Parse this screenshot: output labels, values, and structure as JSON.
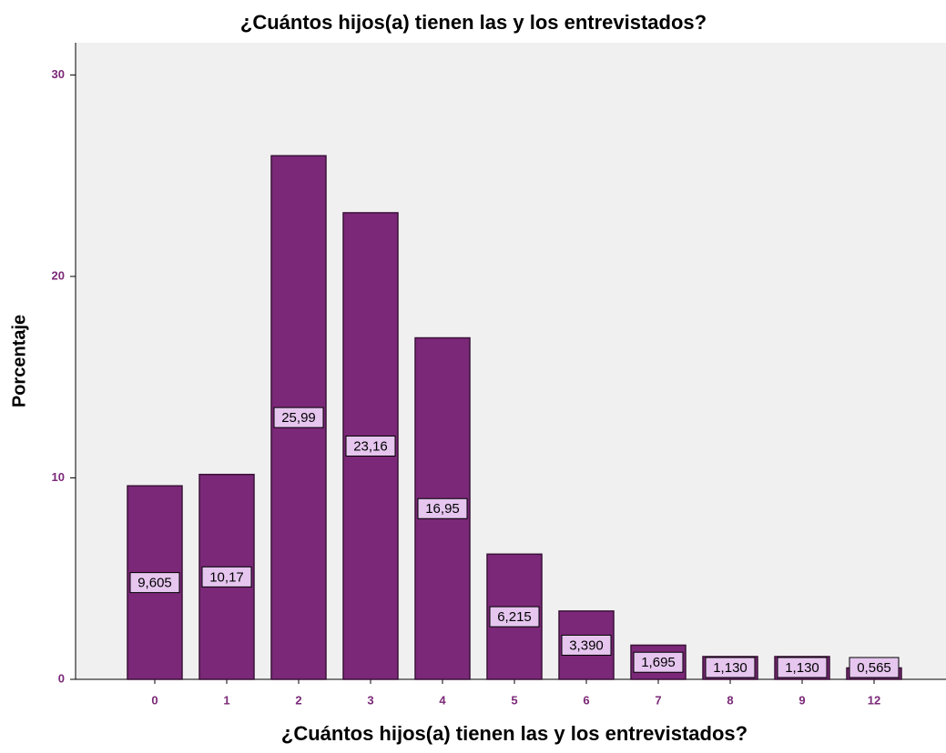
{
  "chart_data": {
    "type": "bar",
    "title": "¿Cuántos hijos(a) tienen las y los entrevistados?",
    "x_label": "¿Cuántos hijos(a) tienen las y los entrevistados?",
    "y_label": "Porcentaje",
    "categories": [
      "0",
      "1",
      "2",
      "3",
      "4",
      "5",
      "6",
      "7",
      "8",
      "9",
      "12"
    ],
    "values": [
      9.605,
      10.17,
      25.99,
      23.16,
      16.95,
      6.215,
      3.39,
      1.695,
      1.13,
      1.13,
      0.565
    ],
    "value_labels": [
      "9,605",
      "10,17",
      "25,99",
      "23,16",
      "16,95",
      "6,215",
      "3,390",
      "1,695",
      "1,130",
      "1,130",
      "0,565"
    ],
    "color": "#7b2878",
    "ylim": [
      0,
      31.6
    ],
    "yticks": [
      0,
      10,
      20,
      30
    ],
    "grid": false
  }
}
